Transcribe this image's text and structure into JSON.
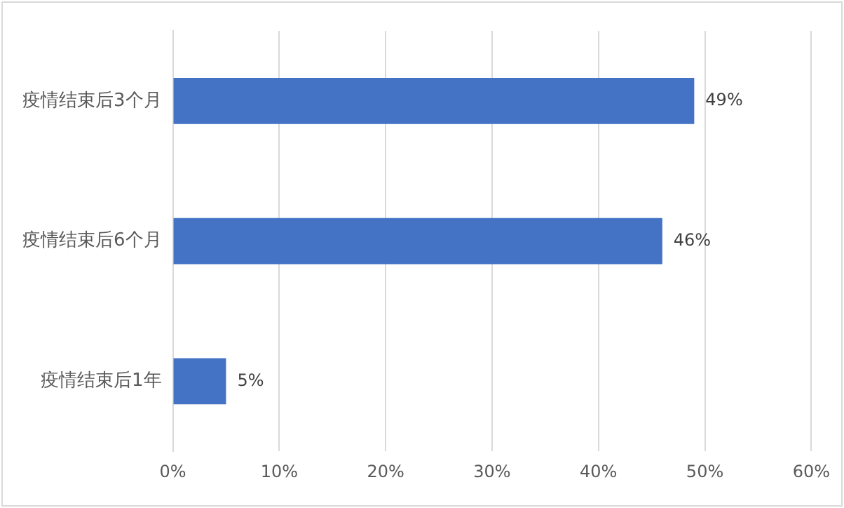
{
  "chart_data": {
    "type": "bar",
    "orientation": "horizontal",
    "categories": [
      "疫情结束后3个月",
      "疫情结束后6个月",
      "疫情结束后1年"
    ],
    "values": [
      49,
      46,
      5
    ],
    "color": "#4472c4",
    "value_labels": [
      "49%",
      "46%",
      "5%"
    ],
    "xlim": [
      0,
      60
    ],
    "xticks": [
      {
        "value": 0,
        "label": "0%"
      },
      {
        "value": 10,
        "label": "10%"
      },
      {
        "value": 20,
        "label": "20%"
      },
      {
        "value": 30,
        "label": "30%"
      },
      {
        "value": 40,
        "label": "40%"
      },
      {
        "value": 50,
        "label": "50%"
      },
      {
        "value": 60,
        "label": "60%"
      }
    ],
    "grid": "x",
    "legend": false
  }
}
